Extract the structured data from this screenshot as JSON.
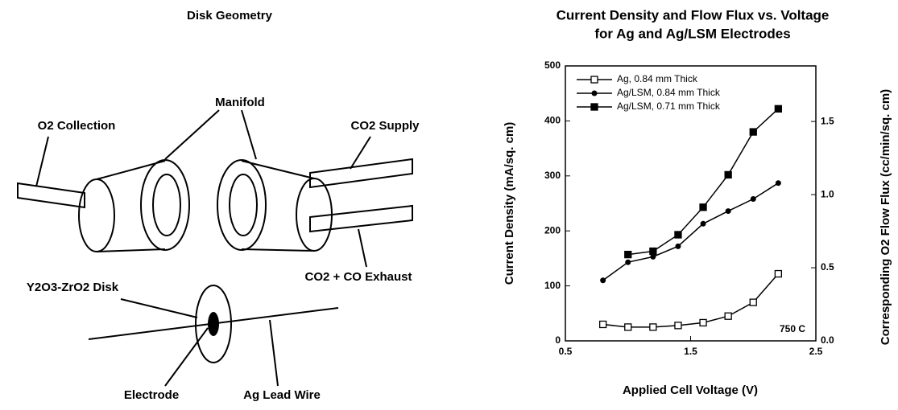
{
  "diagram": {
    "title": "Disk Geometry",
    "labels": [
      "Manifold",
      "O2 Collection",
      "CO2 Supply",
      "CO2 + CO Exhaust",
      "Y2O3-ZrO2 Disk",
      "Electrode",
      "Ag Lead Wire"
    ]
  },
  "chart_data": {
    "type": "line",
    "title": "Current Density and Flow Flux vs. Voltage",
    "subtitle": "for Ag and Ag/LSM Electrodes",
    "x_label": "Applied Cell Voltage (V)",
    "y_label": "Current Density (mA/sq. cm)",
    "y2_label": "Corresponding O2 Flow Flux (cc/min/sq. cm)",
    "annotation": "750  C",
    "x": [
      0.8,
      1.0,
      1.2,
      1.4,
      1.6,
      1.8,
      2.0,
      2.2
    ],
    "series": [
      {
        "name": "Ag, 0.84 mm Thick",
        "color": "#000000",
        "marker": "open-square",
        "values": [
          30,
          25,
          25,
          28,
          33,
          45,
          70,
          122
        ]
      },
      {
        "name": "Ag/LSM, 0.84 mm Thick",
        "color": "#000000",
        "marker": "circle",
        "values": [
          110,
          143,
          153,
          172,
          213,
          236,
          258,
          287
        ]
      },
      {
        "name": "Ag/LSM, 0.71 mm Thick",
        "color": "#000000",
        "marker": "square",
        "values": [
          null,
          157,
          163,
          193,
          243,
          302,
          380,
          422
        ]
      }
    ],
    "xlim": [
      0.5,
      2.5
    ],
    "xticks": [
      0.5,
      1.5,
      2.5
    ],
    "ylim": [
      0,
      500
    ],
    "yticks": [
      0,
      100,
      200,
      300,
      400,
      500
    ],
    "y2lim": [
      0,
      1.88
    ],
    "y2ticks": [
      {
        "value": 0,
        "label": "0.0"
      },
      0.5,
      {
        "value": 1,
        "label": "1.0"
      },
      1.5
    ],
    "legend": "top-left",
    "grid": false
  }
}
